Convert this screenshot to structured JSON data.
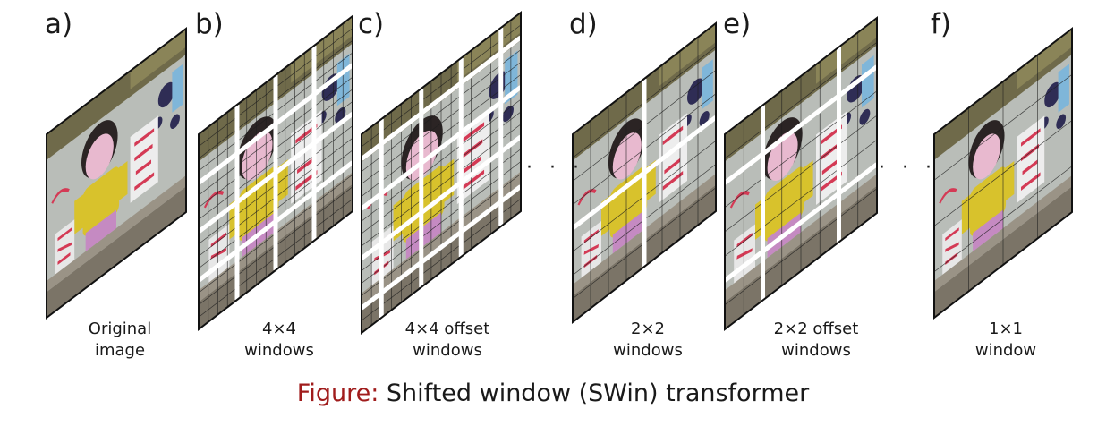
{
  "panels": [
    {
      "letter": "a)",
      "caption_line1": "Original",
      "caption_line2": "image",
      "grid": 1,
      "windows": 1,
      "offset": false
    },
    {
      "letter": "b)",
      "caption_line1": "4×4",
      "caption_line2": "windows",
      "grid": 16,
      "windows": 4,
      "offset": false
    },
    {
      "letter": "c)",
      "caption_line1": "4×4 offset",
      "caption_line2": "windows",
      "grid": 16,
      "windows": 4,
      "offset": true
    },
    {
      "letter": "d)",
      "caption_line1": "2×2",
      "caption_line2": "windows",
      "grid": 8,
      "windows": 2,
      "offset": false
    },
    {
      "letter": "e)",
      "caption_line1": "2×2 offset",
      "caption_line2": "windows",
      "grid": 8,
      "windows": 2,
      "offset": true
    },
    {
      "letter": "f)",
      "caption_line1": "1×1",
      "caption_line2": "window",
      "grid": 4,
      "windows": 1,
      "offset": false
    }
  ],
  "ellipsis": "· · ·",
  "figure_caption": {
    "prefix": "Figure:",
    "text": " Shifted window (SWin) transformer"
  },
  "colors": {
    "caption_prefix": "#a01c1c",
    "text": "#1a1a1a",
    "window_border": "#ffffff",
    "panel_outline": "#111111"
  }
}
